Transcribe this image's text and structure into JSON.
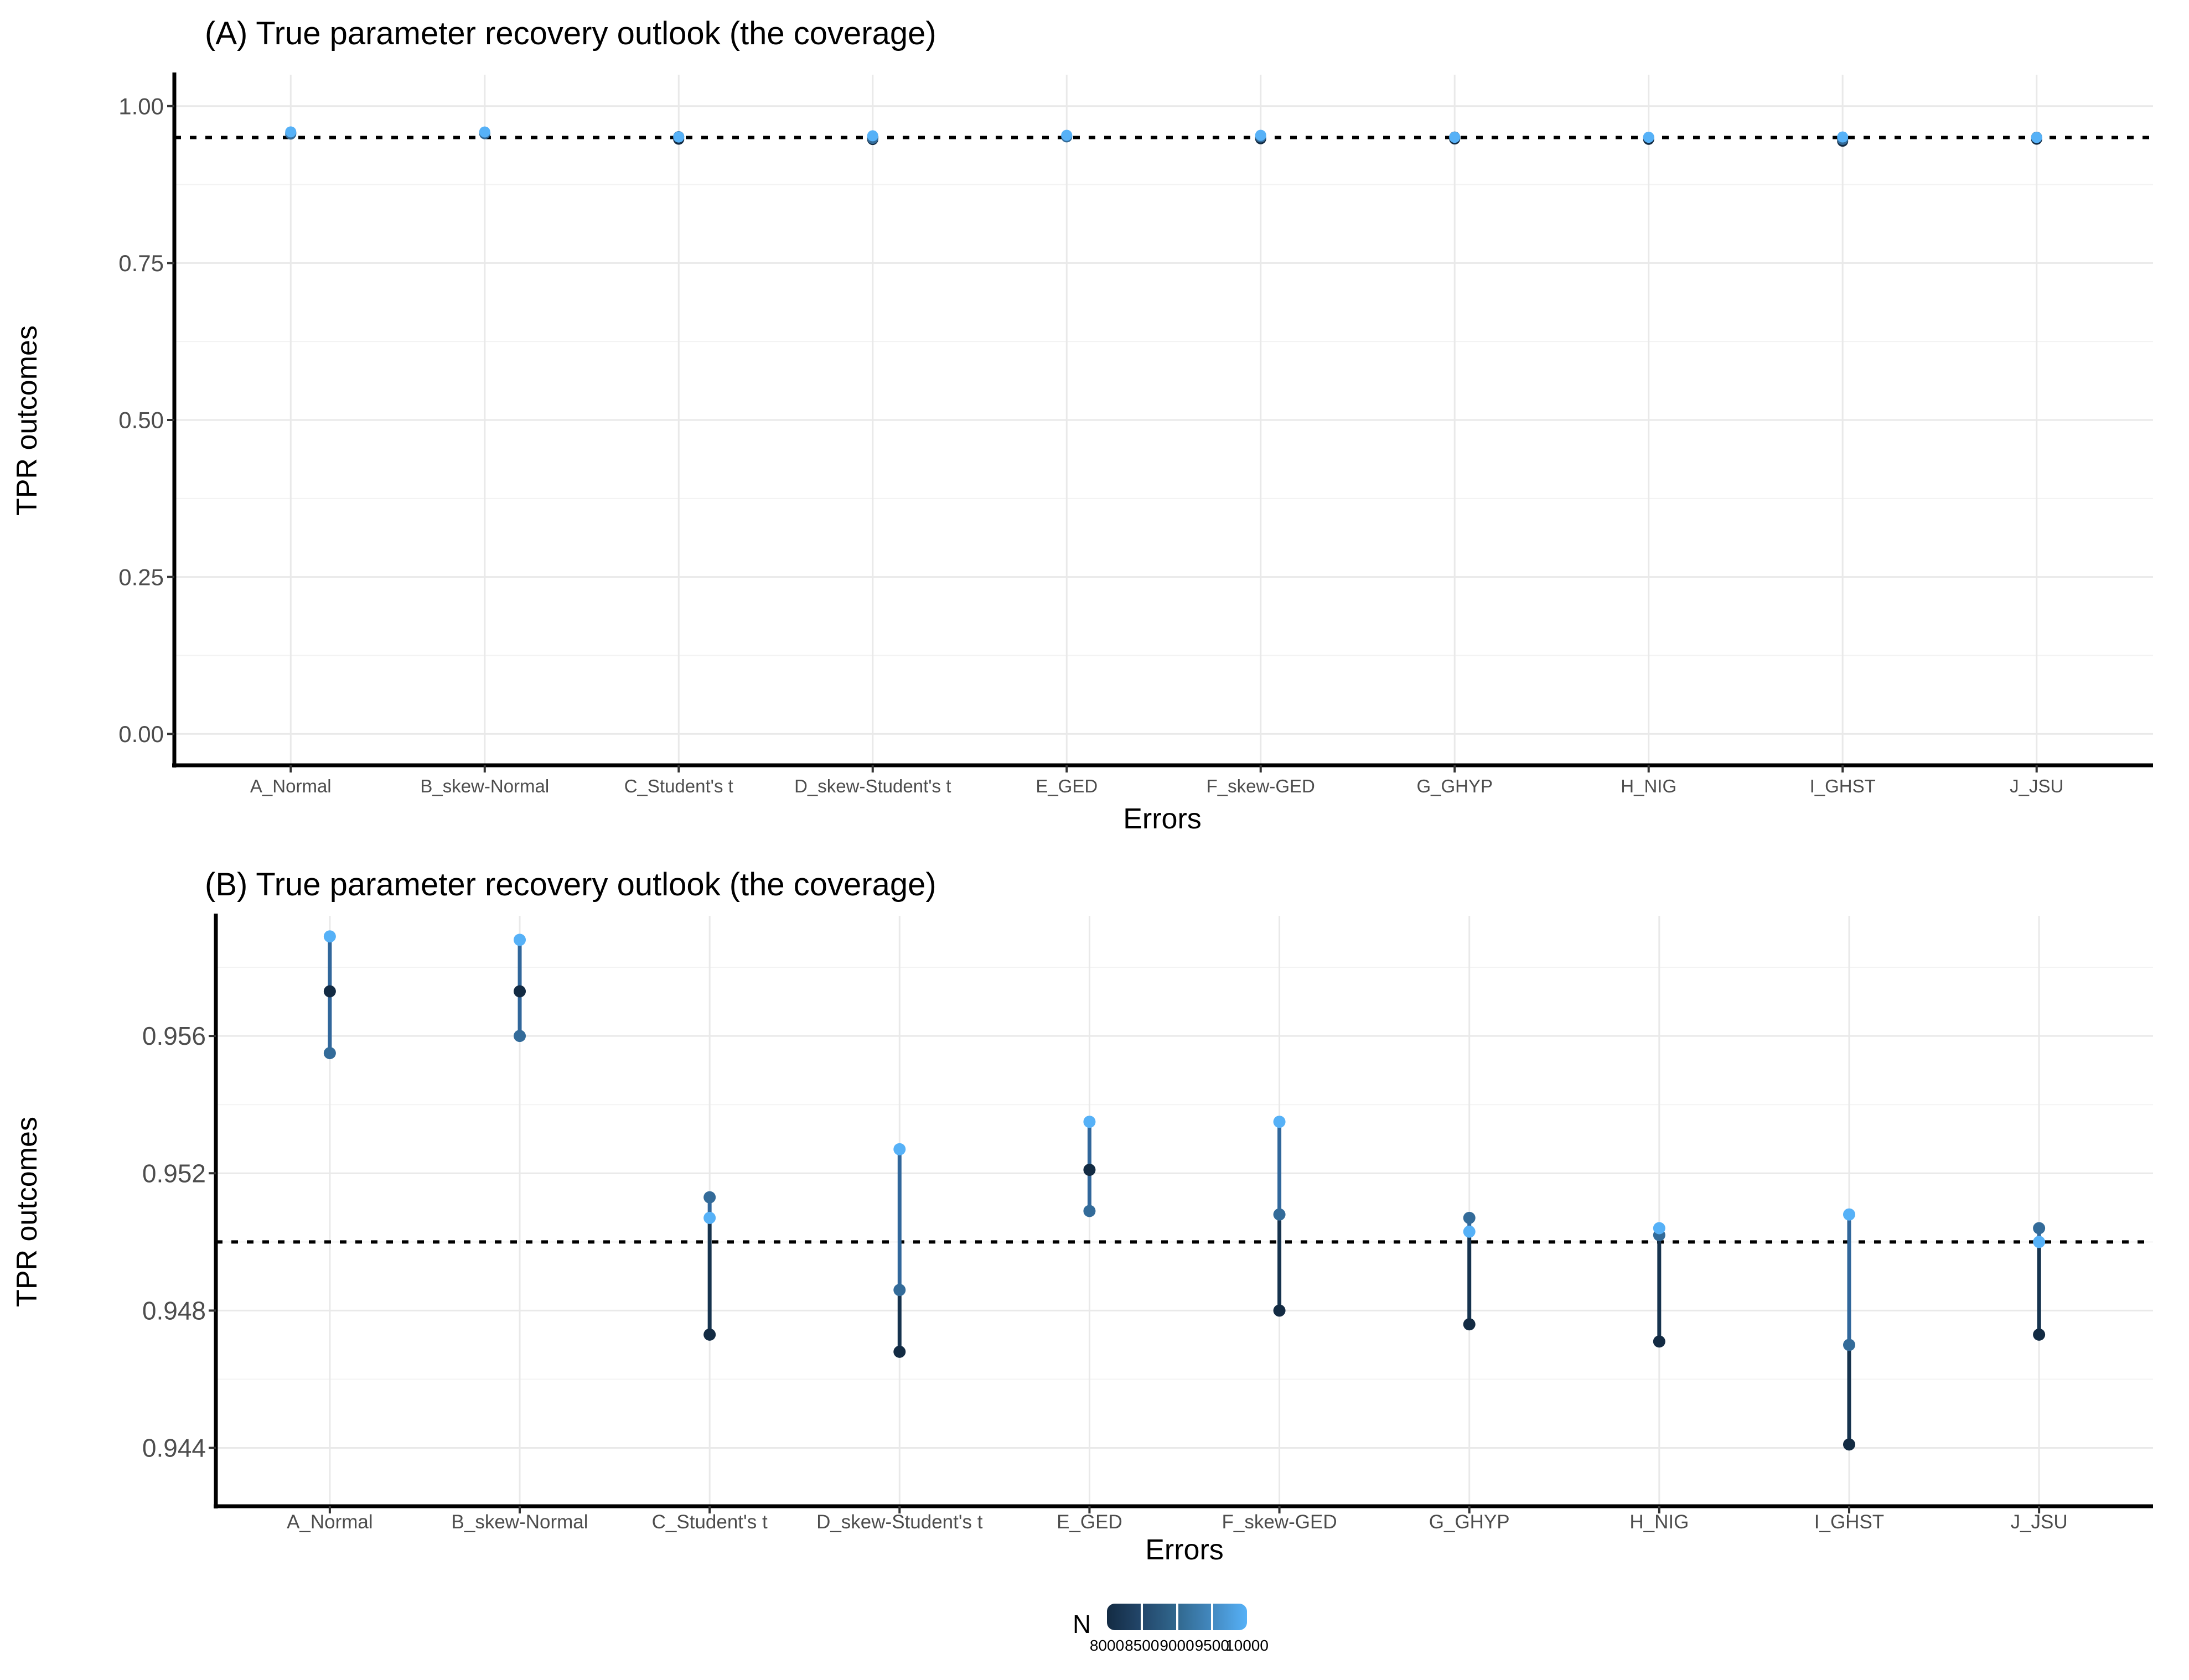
{
  "figure": {
    "panel_a": {
      "title": "(A) True parameter recovery outlook (the coverage)",
      "x_axis_title": "Errors",
      "y_axis_title": "TPR outcomes",
      "y_tick_labels": [
        "0.00",
        "0.25",
        "0.50",
        "0.75",
        "1.00"
      ]
    },
    "panel_b": {
      "title": "(B) True parameter recovery outlook (the coverage)",
      "x_axis_title": "Errors",
      "y_axis_title": "TPR outcomes",
      "y_tick_labels": [
        "0.944",
        "0.948",
        "0.952",
        "0.956"
      ]
    },
    "legend": {
      "title": "N",
      "tick_labels": [
        "8000",
        "8500",
        "9000",
        "9500",
        "10000"
      ],
      "gradient_stops": [
        "#132B43",
        "#23476B",
        "#31688E",
        "#4389C0",
        "#56B1F7"
      ]
    },
    "colors": {
      "point_n8000": "#132B43",
      "point_n9000": "#336B99",
      "point_n10000": "#56B1F7",
      "segment_steel": "#31679B",
      "segment_dark": "#16334E",
      "grid_major": "#E9E9E9",
      "grid_minor": "#F3F3F3",
      "axis_line": "#000000",
      "tick_mark": "#333333",
      "tick_text": "#4d4d4d",
      "reference_line": "#000000"
    }
  },
  "chart_data": {
    "type": "scatter",
    "title_a": "(A) True parameter recovery outlook (the coverage)",
    "title_b": "(B) True parameter recovery outlook (the coverage)",
    "xlabel": "Errors",
    "ylabel": "TPR outcomes",
    "categories": [
      "A_Normal",
      "B_skew-Normal",
      "C_Student's t",
      "D_skew-Student's t",
      "E_GED",
      "F_skew-GED",
      "G_GHYP",
      "H_NIG",
      "I_GHST",
      "J_JSU"
    ],
    "series": [
      {
        "name": "N=8000",
        "n": 8000,
        "color": "#132B43",
        "values": [
          0.9573,
          0.9573,
          0.9473,
          0.9468,
          0.9521,
          0.948,
          0.9476,
          0.9471,
          0.9441,
          0.9473
        ]
      },
      {
        "name": "N=9000",
        "n": 9000,
        "color": "#336B99",
        "values": [
          0.9555,
          0.956,
          0.9513,
          0.9486,
          0.9509,
          0.9508,
          0.9507,
          0.9502,
          0.947,
          0.9504
        ]
      },
      {
        "name": "N=10000",
        "n": 10000,
        "color": "#56B1F7",
        "values": [
          0.9589,
          0.9588,
          0.9507,
          0.9527,
          0.9535,
          0.9535,
          0.9503,
          0.9504,
          0.9508,
          0.95
        ]
      }
    ],
    "reference_line": 0.95,
    "panel_a": {
      "ylim": [
        -0.05,
        1.05
      ],
      "y_ticks": [
        0.0,
        0.25,
        0.5,
        0.75,
        1.0
      ],
      "y_minor_ticks": [
        0.125,
        0.375,
        0.625,
        0.875
      ],
      "grid": true,
      "legend_position": "none"
    },
    "panel_b": {
      "ylim": [
        0.9423,
        0.9595
      ],
      "y_ticks": [
        0.944,
        0.948,
        0.952,
        0.956
      ],
      "y_minor_ticks": [
        0.946,
        0.95,
        0.954,
        0.958
      ],
      "grid": true,
      "legend_position": "bottom"
    },
    "legend": {
      "title": "N",
      "range": [
        8000,
        10000
      ],
      "ticks": [
        8000,
        8500,
        9000,
        9500,
        10000
      ]
    }
  }
}
